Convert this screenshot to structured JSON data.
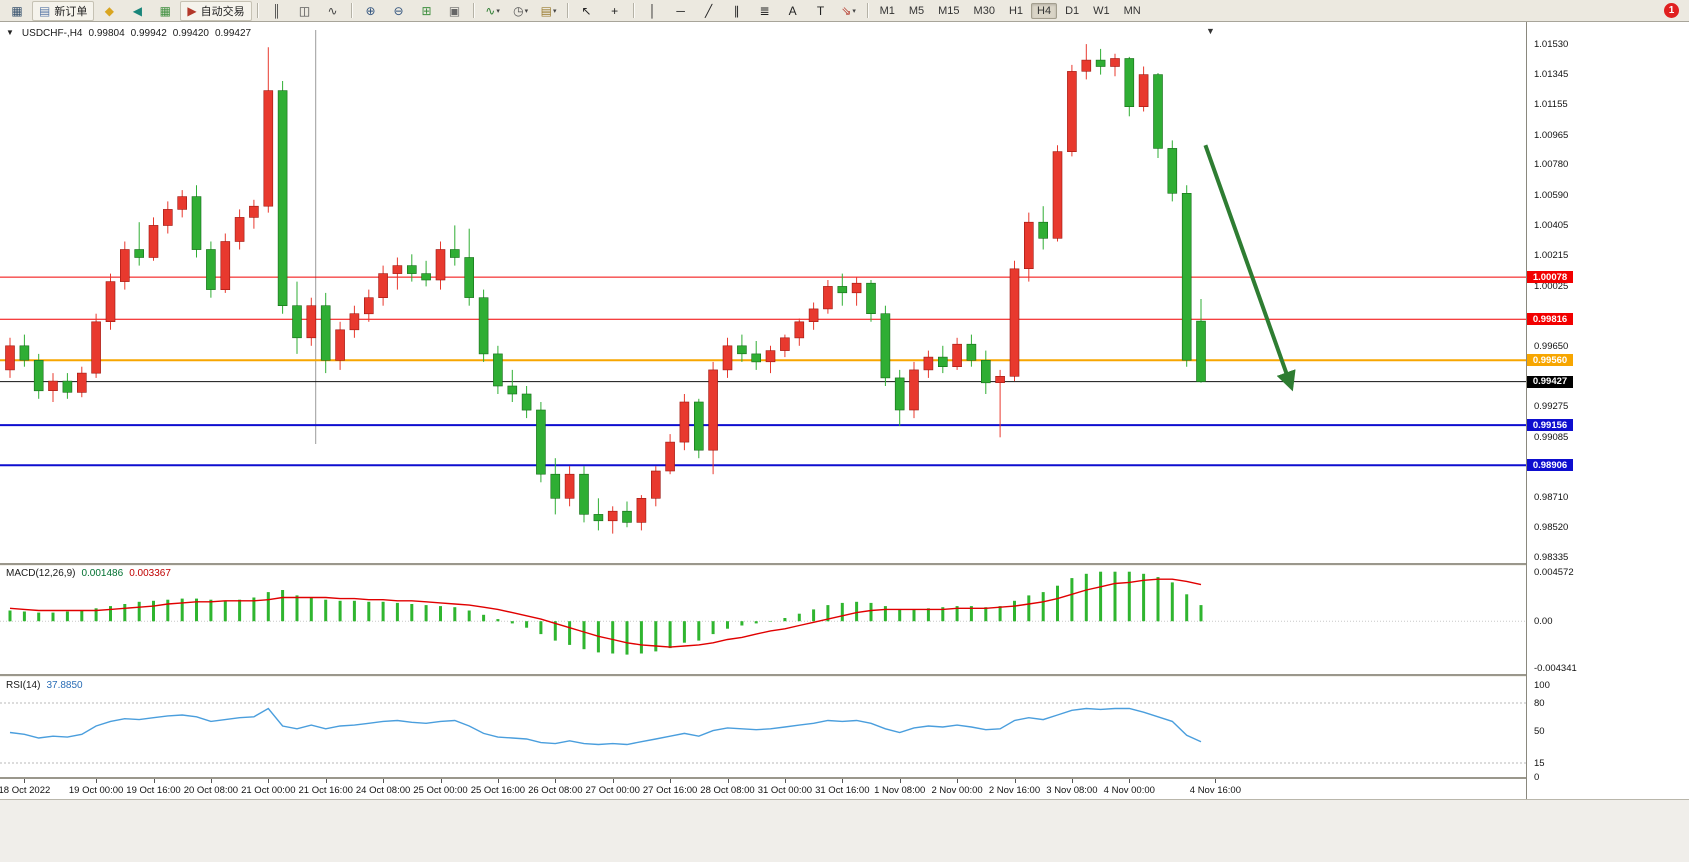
{
  "glyphs": {
    "triangle_down": "▼"
  },
  "toolbar": {
    "new_order_label": "新订单",
    "autotrading_label": "自动交易",
    "dropdown_glyph": "▾",
    "notification_count": "1",
    "active_timeframe": "H4",
    "timeframes": [
      "M1",
      "M5",
      "M15",
      "M30",
      "H1",
      "H4",
      "D1",
      "W1",
      "MN"
    ],
    "items": [
      {
        "type": "icon",
        "name": "new-chart-icon",
        "glyph": "▦",
        "color": "#37526e"
      },
      {
        "type": "button",
        "name": "new-order-button",
        "glyph": "▤",
        "color": "#5b7aa8",
        "label_path": "new_order_label"
      },
      {
        "type": "icon",
        "name": "metaeditor-icon",
        "glyph": "◆",
        "color": "#d9a520"
      },
      {
        "type": "icon",
        "name": "alerts-icon",
        "glyph": "◀",
        "color": "#18857a"
      },
      {
        "type": "icon",
        "name": "add-chart-icon",
        "glyph": "▦",
        "color": "#3f8f3f"
      },
      {
        "type": "button",
        "name": "autotrading-button",
        "glyph": "▶",
        "color": "#b3382a",
        "label_path": "autotrading_label"
      },
      {
        "type": "sep"
      },
      {
        "type": "icon",
        "name": "bar-chart-mode-icon",
        "glyph": "║",
        "color": "#444444"
      },
      {
        "type": "icon",
        "name": "candlestick-mode-icon",
        "glyph": "◫",
        "color": "#444444"
      },
      {
        "type": "icon",
        "name": "line-chart-mode-icon",
        "glyph": "∿",
        "color": "#444444"
      },
      {
        "type": "sep"
      },
      {
        "type": "icon",
        "name": "zoom-in-icon",
        "glyph": "⊕",
        "color": "#33557f"
      },
      {
        "type": "icon",
        "name": "zoom-out-icon",
        "glyph": "⊖",
        "color": "#33557f"
      },
      {
        "type": "icon",
        "name": "tile-windows-icon",
        "glyph": "⊞",
        "color": "#3f8f3f"
      },
      {
        "type": "icon",
        "name": "arrange-windows-icon",
        "glyph": "▣",
        "color": "#666666"
      },
      {
        "type": "sep"
      },
      {
        "type": "icon",
        "name": "indicators-icon",
        "glyph": "∿",
        "color": "#2e7d32",
        "dropdown": true
      },
      {
        "type": "icon",
        "name": "periods-icon",
        "glyph": "◷",
        "color": "#555555",
        "dropdown": true
      },
      {
        "type": "icon",
        "name": "templates-icon",
        "glyph": "▤",
        "color": "#9a7b2f",
        "dropdown": true
      },
      {
        "type": "sep"
      },
      {
        "type": "icon",
        "name": "cursor-icon",
        "glyph": "↖",
        "color": "#222222"
      },
      {
        "type": "icon",
        "name": "crosshair-icon",
        "glyph": "+",
        "color": "#222222"
      },
      {
        "type": "sep"
      },
      {
        "type": "icon",
        "name": "vertical-line-tool-icon",
        "glyph": "│",
        "color": "#222222"
      },
      {
        "type": "icon",
        "name": "horizontal-line-tool-icon",
        "glyph": "─",
        "color": "#222222"
      },
      {
        "type": "icon",
        "name": "trendline-tool-icon",
        "glyph": "╱",
        "color": "#222222"
      },
      {
        "type": "icon",
        "name": "channel-tool-icon",
        "glyph": "∥",
        "color": "#222222"
      },
      {
        "type": "icon",
        "name": "fibonacci-tool-icon",
        "glyph": "≣",
        "color": "#222222"
      },
      {
        "type": "icon",
        "name": "text-tool-icon",
        "glyph": "A",
        "color": "#222222"
      },
      {
        "type": "icon",
        "name": "text-label-tool-icon",
        "glyph": "T",
        "color": "#222222"
      },
      {
        "type": "icon",
        "name": "arrows-tool-icon",
        "glyph": "⇘",
        "color": "#b3382a",
        "dropdown": true
      },
      {
        "type": "sep"
      }
    ]
  },
  "chart": {
    "symbol_period": "USDCHF-,H4",
    "open": "0.99804",
    "high": "0.99942",
    "low": "0.99420",
    "close": "0.99427"
  },
  "price_axis_labels": [
    "1.01530",
    "1.01345",
    "1.01155",
    "1.00965",
    "1.00780",
    "1.00590",
    "1.00405",
    "1.00215",
    "1.00025",
    "0.99650",
    "0.99275",
    "0.99085",
    "0.98710",
    "0.98520",
    "0.98335"
  ],
  "price_tags": [
    {
      "text": "1.00078",
      "bg": "#f20000",
      "fg": "#ffffff"
    },
    {
      "text": "0.99816",
      "bg": "#f20000",
      "fg": "#ffffff"
    },
    {
      "text": "0.99560",
      "bg": "#f7a600",
      "fg": "#ffffff"
    },
    {
      "text": "0.99427",
      "bg": "#000000",
      "fg": "#ffffff"
    },
    {
      "text": "0.99156",
      "bg": "#0e0ecf",
      "fg": "#ffffff"
    },
    {
      "text": "0.98906",
      "bg": "#0e0ecf",
      "fg": "#ffffff"
    }
  ],
  "macd_panel": {
    "name": "MACD(12,26,9)",
    "value_main": "0.001486",
    "value_signal": "0.003367",
    "axis": [
      "0.004572",
      "0.00",
      "-0.004341"
    ]
  },
  "rsi_panel": {
    "name": "RSI(14)",
    "value": "37.8850",
    "axis": [
      "100",
      "80",
      "50",
      "15",
      "0"
    ]
  },
  "time_axis": {
    "labels": [
      {
        "text": "18 Oct 2022",
        "bar": 1
      },
      {
        "text": "19 Oct 00:00",
        "bar": 6
      },
      {
        "text": "19 Oct 16:00",
        "bar": 10
      },
      {
        "text": "20 Oct 08:00",
        "bar": 14
      },
      {
        "text": "21 Oct 00:00",
        "bar": 18
      },
      {
        "text": "21 Oct 16:00",
        "bar": 22
      },
      {
        "text": "24 Oct 08:00",
        "bar": 26
      },
      {
        "text": "25 Oct 00:00",
        "bar": 30
      },
      {
        "text": "25 Oct 16:00",
        "bar": 34
      },
      {
        "text": "26 Oct 08:00",
        "bar": 38
      },
      {
        "text": "27 Oct 00:00",
        "bar": 42
      },
      {
        "text": "27 Oct 16:00",
        "bar": 46
      },
      {
        "text": "28 Oct 08:00",
        "bar": 50
      },
      {
        "text": "31 Oct 00:00",
        "bar": 54
      },
      {
        "text": "31 Oct 16:00",
        "bar": 58
      },
      {
        "text": "1 Nov 08:00",
        "bar": 62
      },
      {
        "text": "2 Nov 00:00",
        "bar": 66
      },
      {
        "text": "2 Nov 16:00",
        "bar": 70
      },
      {
        "text": "3 Nov 08:00",
        "bar": 74
      },
      {
        "text": "4 Nov 00:00",
        "bar": 78
      },
      {
        "text": "4 Nov 16:00",
        "bar": 84
      }
    ]
  },
  "chart_data": {
    "type": "candlestick",
    "symbol": "USDCHF-",
    "timeframe": "H4",
    "up_color": "#e8392e",
    "down_color": "#2fae34",
    "candle_format": [
      "open",
      "high",
      "low",
      "close"
    ],
    "candles": [
      [
        0.995,
        0.997,
        0.9945,
        0.9965
      ],
      [
        0.9965,
        0.9972,
        0.9952,
        0.9956
      ],
      [
        0.9956,
        0.996,
        0.9932,
        0.9937
      ],
      [
        0.9937,
        0.9948,
        0.993,
        0.9943
      ],
      [
        0.9943,
        0.9948,
        0.9932,
        0.9936
      ],
      [
        0.9936,
        0.9952,
        0.9933,
        0.9948
      ],
      [
        0.9948,
        0.9985,
        0.9945,
        0.998
      ],
      [
        0.998,
        1.001,
        0.9975,
        1.0005
      ],
      [
        1.0005,
        1.003,
        1.0,
        1.0025
      ],
      [
        1.0025,
        1.0042,
        1.0015,
        1.002
      ],
      [
        1.002,
        1.0045,
        1.0018,
        1.004
      ],
      [
        1.004,
        1.0055,
        1.0035,
        1.005
      ],
      [
        1.005,
        1.0062,
        1.0045,
        1.0058
      ],
      [
        1.0058,
        1.0065,
        1.002,
        1.0025
      ],
      [
        1.0025,
        1.003,
        0.9995,
        1.0
      ],
      [
        1.0,
        1.0035,
        0.9998,
        1.003
      ],
      [
        1.003,
        1.005,
        1.0025,
        1.0045
      ],
      [
        1.0045,
        1.0056,
        1.0038,
        1.0052
      ],
      [
        1.0052,
        1.0151,
        1.0048,
        1.0124
      ],
      [
        1.0124,
        1.013,
        0.9985,
        0.999
      ],
      [
        0.999,
        1.0005,
        0.996,
        0.997
      ],
      [
        0.997,
        0.9995,
        0.9965,
        0.999
      ],
      [
        0.999,
        0.9998,
        0.9948,
        0.9956
      ],
      [
        0.9956,
        0.998,
        0.995,
        0.9975
      ],
      [
        0.9975,
        0.999,
        0.997,
        0.9985
      ],
      [
        0.9985,
        1.0,
        0.998,
        0.9995
      ],
      [
        0.9995,
        1.0015,
        0.999,
        1.001
      ],
      [
        1.001,
        1.002,
        1.0,
        1.0015
      ],
      [
        1.0015,
        1.0022,
        1.0005,
        1.001
      ],
      [
        1.001,
        1.0018,
        1.0002,
        1.0006
      ],
      [
        1.0006,
        1.003,
        1.0,
        1.0025
      ],
      [
        1.0025,
        1.004,
        1.0015,
        1.002
      ],
      [
        1.002,
        1.0038,
        0.999,
        0.9995
      ],
      [
        0.9995,
        1.0,
        0.9955,
        0.996
      ],
      [
        0.996,
        0.9965,
        0.9935,
        0.994
      ],
      [
        0.994,
        0.995,
        0.993,
        0.9935
      ],
      [
        0.9935,
        0.994,
        0.992,
        0.9925
      ],
      [
        0.9925,
        0.993,
        0.988,
        0.9885
      ],
      [
        0.9885,
        0.9895,
        0.986,
        0.987
      ],
      [
        0.987,
        0.989,
        0.9865,
        0.9885
      ],
      [
        0.9885,
        0.989,
        0.9855,
        0.986
      ],
      [
        0.986,
        0.987,
        0.985,
        0.9856
      ],
      [
        0.9856,
        0.9865,
        0.9848,
        0.9862
      ],
      [
        0.9862,
        0.9868,
        0.9852,
        0.9855
      ],
      [
        0.9855,
        0.9872,
        0.985,
        0.987
      ],
      [
        0.987,
        0.989,
        0.9865,
        0.9887
      ],
      [
        0.9887,
        0.991,
        0.9885,
        0.9905
      ],
      [
        0.9905,
        0.9935,
        0.99,
        0.993
      ],
      [
        0.993,
        0.9932,
        0.9895,
        0.99
      ],
      [
        0.99,
        0.9955,
        0.9885,
        0.995
      ],
      [
        0.995,
        0.997,
        0.9945,
        0.9965
      ],
      [
        0.9965,
        0.9972,
        0.9955,
        0.996
      ],
      [
        0.996,
        0.9968,
        0.995,
        0.9955
      ],
      [
        0.9955,
        0.9965,
        0.9948,
        0.9962
      ],
      [
        0.9962,
        0.9972,
        0.9958,
        0.997
      ],
      [
        0.997,
        0.9982,
        0.9965,
        0.998
      ],
      [
        0.998,
        0.9992,
        0.9975,
        0.9988
      ],
      [
        0.9988,
        1.0006,
        0.9985,
        1.0002
      ],
      [
        1.0002,
        1.001,
        0.999,
        0.9998
      ],
      [
        0.9998,
        1.0008,
        0.999,
        1.0004
      ],
      [
        1.0004,
        1.0006,
        0.998,
        0.9985
      ],
      [
        0.9985,
        0.999,
        0.994,
        0.9945
      ],
      [
        0.9945,
        0.995,
        0.9915,
        0.9925
      ],
      [
        0.9925,
        0.9955,
        0.992,
        0.995
      ],
      [
        0.995,
        0.9962,
        0.9945,
        0.9958
      ],
      [
        0.9958,
        0.9965,
        0.9948,
        0.9952
      ],
      [
        0.9952,
        0.997,
        0.995,
        0.9966
      ],
      [
        0.9966,
        0.9972,
        0.9952,
        0.9956
      ],
      [
        0.9956,
        0.9962,
        0.9935,
        0.9942
      ],
      [
        0.9942,
        0.995,
        0.9908,
        0.9946
      ],
      [
        0.9946,
        1.0018,
        0.9943,
        1.0013
      ],
      [
        1.0013,
        1.0048,
        1.0005,
        1.0042
      ],
      [
        1.0042,
        1.0052,
        1.0025,
        1.0032
      ],
      [
        1.0032,
        1.009,
        1.003,
        1.0086
      ],
      [
        1.0086,
        1.014,
        1.0083,
        1.0136
      ],
      [
        1.0136,
        1.0153,
        1.0131,
        1.0143
      ],
      [
        1.0143,
        1.015,
        1.0134,
        1.0139
      ],
      [
        1.0139,
        1.0147,
        1.0133,
        1.0144
      ],
      [
        1.0144,
        1.0145,
        1.0108,
        1.0114
      ],
      [
        1.0114,
        1.0139,
        1.0111,
        1.0134
      ],
      [
        1.0134,
        1.0135,
        1.0082,
        1.0088
      ],
      [
        1.0088,
        1.0093,
        1.0055,
        1.006
      ],
      [
        1.006,
        1.0065,
        0.9952,
        0.9956
      ],
      [
        0.99804,
        0.99942,
        0.9942,
        0.99427
      ]
    ],
    "hlines": [
      {
        "price": 1.00078,
        "color": "#f20000",
        "width": 1
      },
      {
        "price": 0.99816,
        "color": "#f20000",
        "width": 1
      },
      {
        "price": 0.9956,
        "color": "#f7a600",
        "width": 2
      },
      {
        "price": 0.99156,
        "color": "#0e0ecf",
        "width": 2
      },
      {
        "price": 0.98906,
        "color": "#0e0ecf",
        "width": 2
      }
    ],
    "current_price": 0.99427,
    "vline_bar": 21.3,
    "arrow": {
      "from_bar": 83.3,
      "from_price": 1.009,
      "to_bar": 89.3,
      "to_price": 0.9939,
      "color": "#2e7d32"
    },
    "macd": {
      "name": "MACD(12,26,9)",
      "hist_color": "#2fb52f",
      "signal_color": "#e00000",
      "axis_max": 0.004572,
      "axis_min": -0.004341,
      "histogram": [
        0.001,
        0.0009,
        0.0008,
        0.0008,
        0.0009,
        0.001,
        0.0012,
        0.0014,
        0.0016,
        0.0018,
        0.0019,
        0.002,
        0.0021,
        0.0021,
        0.002,
        0.0019,
        0.002,
        0.0022,
        0.0027,
        0.0029,
        0.0024,
        0.0022,
        0.002,
        0.0019,
        0.0019,
        0.0018,
        0.0018,
        0.0017,
        0.0016,
        0.0015,
        0.0014,
        0.0013,
        0.001,
        0.0006,
        0.0002,
        -0.0002,
        -0.0006,
        -0.0012,
        -0.0018,
        -0.0022,
        -0.0026,
        -0.0029,
        -0.003,
        -0.0031,
        -0.003,
        -0.0028,
        -0.0025,
        -0.002,
        -0.0018,
        -0.0012,
        -0.0007,
        -0.0004,
        -0.0002,
        0.0,
        0.0003,
        0.0007,
        0.0011,
        0.0015,
        0.0017,
        0.0018,
        0.0017,
        0.0014,
        0.0011,
        0.0011,
        0.0012,
        0.0013,
        0.0014,
        0.0014,
        0.0013,
        0.0014,
        0.0019,
        0.0024,
        0.0027,
        0.0033,
        0.004,
        0.0044,
        0.0046,
        0.0046,
        0.0046,
        0.0044,
        0.0041,
        0.0036,
        0.0025,
        0.0015
      ],
      "signal": [
        0.0012,
        0.0011,
        0.001,
        0.001,
        0.001,
        0.001,
        0.001,
        0.0011,
        0.0012,
        0.0013,
        0.0014,
        0.0016,
        0.0017,
        0.0018,
        0.0018,
        0.0019,
        0.0019,
        0.0019,
        0.002,
        0.0022,
        0.0022,
        0.0022,
        0.0022,
        0.0021,
        0.0021,
        0.002,
        0.002,
        0.0019,
        0.0019,
        0.0018,
        0.0017,
        0.0016,
        0.0015,
        0.0013,
        0.0011,
        0.0008,
        0.0005,
        0.0002,
        -0.0002,
        -0.0006,
        -0.001,
        -0.0014,
        -0.0017,
        -0.002,
        -0.0022,
        -0.0023,
        -0.0024,
        -0.0023,
        -0.0022,
        -0.002,
        -0.0017,
        -0.0015,
        -0.0012,
        -0.0009,
        -0.0007,
        -0.0004,
        -0.0001,
        0.0002,
        0.0005,
        0.0008,
        0.001,
        0.0011,
        0.0011,
        0.0011,
        0.0011,
        0.0011,
        0.0012,
        0.0012,
        0.0012,
        0.0013,
        0.0014,
        0.0016,
        0.0018,
        0.0021,
        0.0025,
        0.0029,
        0.0032,
        0.0035,
        0.0036,
        0.0038,
        0.0039,
        0.0039,
        0.0037,
        0.0034
      ]
    },
    "rsi": {
      "name": "RSI(14)",
      "color": "#4a9edd",
      "levels": [
        80,
        15
      ],
      "values": [
        48,
        46,
        42,
        44,
        43,
        46,
        55,
        60,
        63,
        62,
        64,
        66,
        67,
        65,
        60,
        62,
        64,
        65,
        74,
        55,
        52,
        56,
        52,
        55,
        56,
        58,
        60,
        61,
        59,
        58,
        60,
        61,
        55,
        47,
        43,
        42,
        41,
        37,
        36,
        39,
        36,
        35,
        36,
        35,
        38,
        41,
        44,
        47,
        44,
        50,
        53,
        52,
        51,
        52,
        54,
        56,
        58,
        61,
        60,
        61,
        58,
        52,
        48,
        53,
        55,
        54,
        56,
        54,
        51,
        52,
        61,
        64,
        62,
        67,
        72,
        74,
        73,
        74,
        74,
        70,
        65,
        60,
        45,
        37.9
      ]
    }
  }
}
